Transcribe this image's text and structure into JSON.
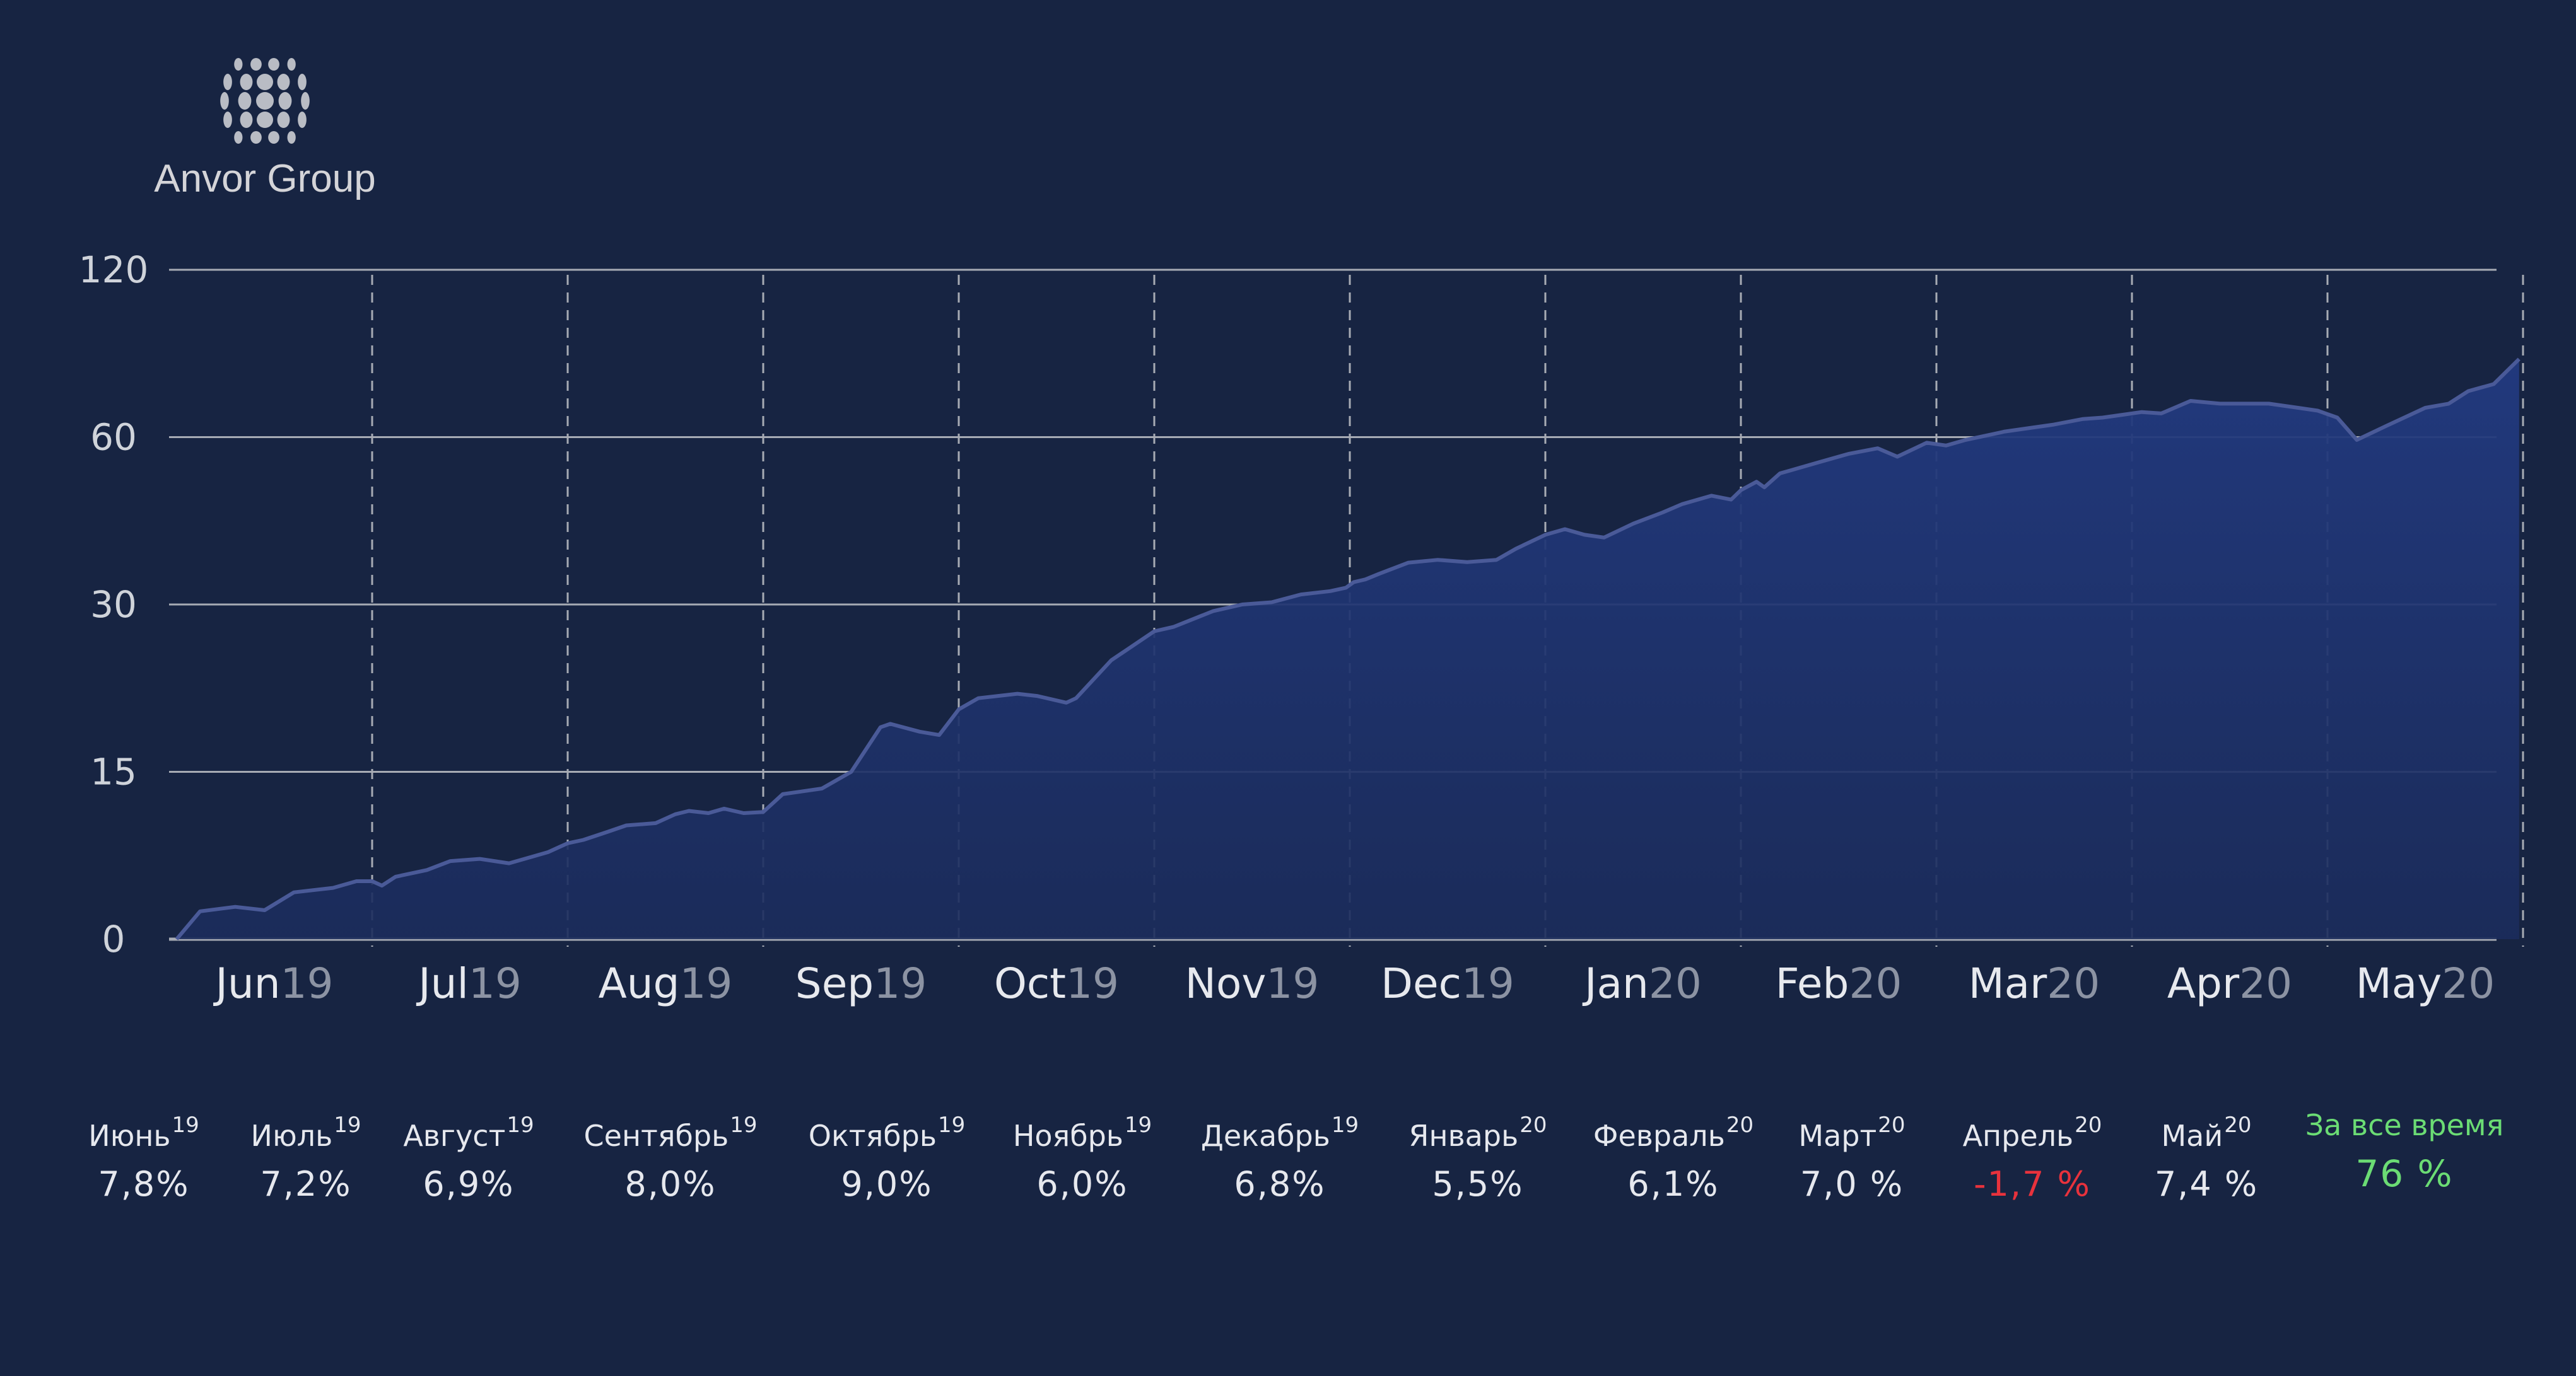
{
  "brand": {
    "name": "Anvor Group",
    "logo_icon": "dotted-sphere-icon",
    "logo_color": "#b9bcc4"
  },
  "colors": {
    "background": "#172442",
    "area_fill_top": "#223a80",
    "area_fill_bottom": "#1b2c5c",
    "line": "#4a5a98",
    "grid": "#a7abb4",
    "positive": "#6bdc74",
    "negative": "#e8323c"
  },
  "chart_data": {
    "type": "area",
    "y_ticks": [
      "0",
      "15",
      "30",
      "60",
      "120"
    ],
    "y_tick_values": [
      0,
      15,
      30,
      60,
      120
    ],
    "y_scale": "nonlinear (equal spacing between 0, 15, 30, 60, 120)",
    "x_ticks": [
      {
        "month": "Jun",
        "year": "19"
      },
      {
        "month": "Jul",
        "year": "19"
      },
      {
        "month": "Aug",
        "year": "19"
      },
      {
        "month": "Sep",
        "year": "19"
      },
      {
        "month": "Oct",
        "year": "19"
      },
      {
        "month": "Nov",
        "year": "19"
      },
      {
        "month": "Dec",
        "year": "19"
      },
      {
        "month": "Jan",
        "year": "20"
      },
      {
        "month": "Feb",
        "year": "20"
      },
      {
        "month": "Mar",
        "year": "20"
      },
      {
        "month": "Apr",
        "year": "20"
      },
      {
        "month": "May",
        "year": "20"
      }
    ],
    "grid": {
      "horizontal": "solid",
      "vertical": "dashed at month boundaries"
    },
    "series": [
      {
        "x_months": [
          0,
          0.12,
          0.3,
          0.45,
          0.6,
          0.8,
          0.92,
          1.0,
          1.05,
          1.12,
          1.28,
          1.4,
          1.55,
          1.7,
          1.82,
          1.9,
          2.0,
          2.08,
          2.2,
          2.3,
          2.45,
          2.55,
          2.62,
          2.72,
          2.8,
          2.9,
          3.0,
          3.1,
          3.3,
          3.45,
          3.6,
          3.65,
          3.8,
          3.9,
          4.0,
          4.1,
          4.3,
          4.4,
          4.55,
          4.6,
          4.78,
          5.0,
          5.1,
          5.3,
          5.35,
          5.45,
          5.6,
          5.75,
          5.9,
          5.98,
          6.02,
          6.08,
          6.15,
          6.3,
          6.45,
          6.6,
          6.75,
          6.85,
          7.0,
          7.1,
          7.2,
          7.3,
          7.45,
          7.6,
          7.7,
          7.85,
          7.95,
          8.0,
          8.08,
          8.12,
          8.2,
          8.25,
          8.4,
          8.55,
          8.7,
          8.8,
          8.95,
          9.05,
          9.15,
          9.25,
          9.35,
          9.5,
          9.6,
          9.75,
          9.85,
          9.95,
          10.05,
          10.15,
          10.3,
          10.45,
          10.55,
          10.7,
          10.85,
          10.95,
          11.05,
          11.15,
          11.3,
          11.5,
          11.62,
          11.72,
          11.85,
          11.98
        ],
        "y": [
          0,
          2.5,
          2.9,
          2.6,
          4.2,
          4.6,
          5.2,
          5.2,
          4.8,
          5.6,
          6.2,
          7.0,
          7.2,
          6.8,
          7.4,
          7.8,
          8.6,
          8.9,
          9.6,
          10.2,
          10.4,
          11.2,
          11.5,
          11.3,
          11.7,
          11.3,
          11.4,
          13.0,
          13.5,
          15.0,
          19.0,
          19.3,
          18.6,
          18.3,
          20.6,
          21.6,
          22.0,
          21.8,
          21.2,
          21.6,
          25.0,
          27.6,
          28.0,
          29.4,
          29.6,
          30.0,
          30.4,
          31.8,
          32.4,
          33.0,
          34.0,
          34.5,
          35.5,
          37.5,
          38.0,
          37.6,
          38.0,
          40.0,
          42.5,
          43.5,
          42.5,
          42.0,
          44.5,
          46.5,
          48.0,
          49.5,
          48.8,
          50.5,
          52.0,
          51.0,
          53.5,
          54.0,
          55.5,
          57.0,
          58.0,
          56.5,
          59.0,
          58.5,
          59.5,
          60.5,
          62.0,
          63.5,
          64.5,
          66.5,
          67.0,
          68.0,
          69.0,
          68.5,
          73.0,
          72.0,
          72.0,
          72.0,
          70.5,
          69.5,
          67.0,
          59.5,
          64.0,
          70.5,
          72.0,
          76.5,
          79.0,
          88.0
        ]
      }
    ]
  },
  "monthly": [
    {
      "name": "Июнь",
      "year": "19",
      "value": "7,8%"
    },
    {
      "name": "Июль",
      "year": "19",
      "value": "7,2%"
    },
    {
      "name": "Август",
      "year": "19",
      "value": "6,9%"
    },
    {
      "name": "Сентябрь",
      "year": "19",
      "value": "8,0%"
    },
    {
      "name": "Октябрь",
      "year": "19",
      "value": "9,0%"
    },
    {
      "name": "Ноябрь",
      "year": "19",
      "value": "6,0%"
    },
    {
      "name": "Декабрь",
      "year": "19",
      "value": "6,8%"
    },
    {
      "name": "Январь",
      "year": "20",
      "value": "5,5%"
    },
    {
      "name": "Февраль",
      "year": "20",
      "value": "6,1%"
    },
    {
      "name": "Март",
      "year": "20",
      "value": "7,0 %"
    },
    {
      "name": "Апрель",
      "year": "20",
      "value": "-1,7 %"
    },
    {
      "name": "Май",
      "year": "20",
      "value": "7,4 %"
    }
  ],
  "total": {
    "name": "За все время",
    "value": "76 %"
  }
}
